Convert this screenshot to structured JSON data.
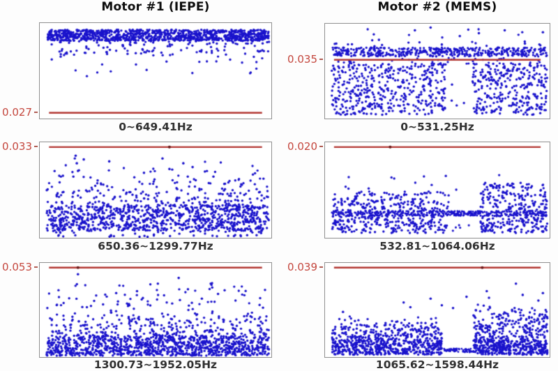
{
  "chart_data": {
    "type": "scatter",
    "layout": {
      "rows": 3,
      "cols": 2,
      "grid": false,
      "legend": "none"
    },
    "columns": [
      "Motor #1 (IEPE)",
      "Motor #2 (MEMS)"
    ],
    "colors": {
      "point": "#1a13cc",
      "threshold_line": "#b23530",
      "threshold_line_dot": "#6b1a1a",
      "threshold_label": "#c4463d",
      "frame": "#8f8f8f",
      "title": "#0d0d0d",
      "xlabel": "#303030"
    },
    "panels": [
      {
        "column": "Motor #1 (IEPE)",
        "band_index": 1,
        "threshold_value": "0.027",
        "x_range_label": "0~649.41Hz",
        "line_frac": 0.94,
        "line_dot_x": [],
        "clusters": [
          {
            "x0": 0.03,
            "x1": 0.99,
            "y0": 0.07,
            "y1": 0.185,
            "n": 950,
            "pow": 1,
            "r": 1.7
          },
          {
            "x0": 0.03,
            "x1": 0.99,
            "y0": 0.17,
            "y1": 0.33,
            "n": 130,
            "pow": 2.0,
            "r": 1.7
          },
          {
            "x0": 0.04,
            "x1": 0.98,
            "y0": 0.28,
            "y1": 0.56,
            "n": 45,
            "pow": 1.4,
            "r": 1.7
          }
        ],
        "points": []
      },
      {
        "column": "Motor #2 (MEMS)",
        "band_index": 1,
        "threshold_value": "0.035",
        "x_range_label": "0~531.25Hz",
        "line_frac": 0.38,
        "line_dot_x": [],
        "clusters": [
          {
            "x0": 0.03,
            "x1": 0.99,
            "y0": 0.25,
            "y1": 0.345,
            "n": 480,
            "pow": 1,
            "r": 1.6
          },
          {
            "x0": 0.04,
            "x1": 0.98,
            "y0": 0.05,
            "y1": 0.25,
            "n": 22,
            "pow": 0.55,
            "r": 1.7
          },
          {
            "x0": 0.03,
            "x1": 0.99,
            "y0": 0.36,
            "y1": 0.43,
            "n": 40,
            "pow": 1,
            "r": 1.6
          },
          {
            "x0": 0.03,
            "x1": 0.535,
            "y0": 0.42,
            "y1": 0.96,
            "n": 430,
            "pow": 1,
            "r": 1.7
          },
          {
            "x0": 0.657,
            "x1": 0.99,
            "y0": 0.42,
            "y1": 0.96,
            "n": 300,
            "pow": 1,
            "r": 1.7
          },
          {
            "x0": 0.535,
            "x1": 0.657,
            "y0": 0.5,
            "y1": 0.9,
            "n": 4,
            "pow": 1,
            "r": 1.7
          }
        ],
        "points": [
          [
            0.4,
            0.07
          ],
          [
            0.47,
            0.04
          ],
          [
            0.685,
            0.1
          ],
          [
            0.24,
            0.17
          ],
          [
            0.05,
            0.21
          ],
          [
            0.97,
            0.09
          ],
          [
            0.89,
            0.21
          ],
          [
            0.52,
            0.22
          ],
          [
            0.6,
            0.13
          ],
          [
            0.8,
            0.07
          ]
        ]
      },
      {
        "column": "Motor #1 (IEPE)",
        "band_index": 2,
        "threshold_value": "0.033",
        "x_range_label": "650.36~1299.77Hz",
        "line_frac": 0.05,
        "line_dot_x": [
          0.56
        ],
        "clusters": [
          {
            "x0": 0.03,
            "x1": 0.99,
            "y0": 0.66,
            "y1": 0.93,
            "n": 900,
            "pow": 0.9,
            "r": 1.7
          },
          {
            "x0": 0.03,
            "x1": 0.99,
            "y0": 0.15,
            "y1": 0.68,
            "n": 250,
            "pow": 0.45,
            "r": 1.7
          },
          {
            "x0": 0.05,
            "x1": 0.97,
            "y0": 0.93,
            "y1": 0.99,
            "n": 40,
            "pow": 1,
            "r": 1.7
          }
        ],
        "points": [
          [
            0.155,
            0.14
          ],
          [
            0.16,
            0.22
          ],
          [
            0.165,
            0.3
          ],
          [
            0.19,
            0.18
          ],
          [
            0.3,
            0.2
          ],
          [
            0.53,
            0.17
          ],
          [
            0.56,
            0.28
          ],
          [
            0.62,
            0.22
          ],
          [
            0.66,
            0.26
          ],
          [
            0.45,
            0.32
          ],
          [
            0.75,
            0.36
          ],
          [
            0.87,
            0.44
          ],
          [
            0.95,
            0.52
          ],
          [
            0.1,
            0.35
          ],
          [
            0.25,
            0.4
          ]
        ]
      },
      {
        "column": "Motor #2 (MEMS)",
        "band_index": 2,
        "threshold_value": "0.020",
        "x_range_label": "532.81~1064.06Hz",
        "line_frac": 0.05,
        "line_dot_x": [
          0.29
        ],
        "clusters": [
          {
            "x0": 0.03,
            "x1": 0.99,
            "y0": 0.72,
            "y1": 0.77,
            "n": 260,
            "pow": 1,
            "r": 1.5
          },
          {
            "x0": 0.03,
            "x1": 0.553,
            "y0": 0.5,
            "y1": 0.95,
            "n": 430,
            "pow": 0.85,
            "r": 1.7
          },
          {
            "x0": 0.69,
            "x1": 0.99,
            "y0": 0.42,
            "y1": 0.95,
            "n": 330,
            "pow": 0.85,
            "r": 1.7
          },
          {
            "x0": 0.553,
            "x1": 0.69,
            "y0": 0.72,
            "y1": 0.77,
            "n": 70,
            "pow": 1,
            "r": 1.4
          },
          {
            "x0": 0.05,
            "x1": 0.98,
            "y0": 0.32,
            "y1": 0.5,
            "n": 14,
            "pow": 0.6,
            "r": 1.7
          },
          {
            "x0": 0.553,
            "x1": 0.69,
            "y0": 0.85,
            "y1": 0.95,
            "n": 5,
            "pow": 1,
            "r": 1.6
          }
        ],
        "points": []
      },
      {
        "column": "Motor #1 (IEPE)",
        "band_index": 3,
        "threshold_value": "0.053",
        "x_range_label": "1300.73~1952.05Hz",
        "line_frac": 0.05,
        "line_dot_x": [
          0.165
        ],
        "clusters": [
          {
            "x0": 0.03,
            "x1": 0.99,
            "y0": 0.78,
            "y1": 0.985,
            "n": 950,
            "pow": 0.8,
            "r": 1.7
          },
          {
            "x0": 0.03,
            "x1": 0.99,
            "y0": 0.45,
            "y1": 0.8,
            "n": 330,
            "pow": 0.5,
            "r": 1.7
          },
          {
            "x0": 0.04,
            "x1": 0.98,
            "y0": 0.2,
            "y1": 0.47,
            "n": 70,
            "pow": 0.6,
            "r": 1.7
          }
        ],
        "points": [
          [
            0.165,
            0.12
          ],
          [
            0.51,
            0.22
          ],
          [
            0.6,
            0.16
          ],
          [
            0.42,
            0.3
          ],
          [
            0.64,
            0.28
          ],
          [
            0.33,
            0.32
          ],
          [
            0.77,
            0.33
          ],
          [
            0.7,
            0.38
          ]
        ]
      },
      {
        "column": "Motor #2 (MEMS)",
        "band_index": 3,
        "threshold_value": "0.039",
        "x_range_label": "1065.62~1598.44Hz",
        "line_frac": 0.05,
        "line_dot_x": [
          0.7
        ],
        "clusters": [
          {
            "x0": 0.03,
            "x1": 0.52,
            "y0": 0.82,
            "y1": 0.975,
            "n": 430,
            "pow": 0.9,
            "r": 1.7
          },
          {
            "x0": 0.66,
            "x1": 0.99,
            "y0": 0.82,
            "y1": 0.975,
            "n": 340,
            "pow": 0.9,
            "r": 1.7
          },
          {
            "x0": 0.52,
            "x1": 0.66,
            "y0": 0.91,
            "y1": 0.95,
            "n": 70,
            "pow": 1,
            "r": 1.4
          },
          {
            "x0": 0.03,
            "x1": 0.52,
            "y0": 0.56,
            "y1": 0.84,
            "n": 260,
            "pow": 0.55,
            "r": 1.7
          },
          {
            "x0": 0.66,
            "x1": 0.99,
            "y0": 0.42,
            "y1": 0.84,
            "n": 260,
            "pow": 0.5,
            "r": 1.7
          }
        ],
        "points": [
          [
            0.08,
            0.52
          ],
          [
            0.35,
            0.42
          ],
          [
            0.38,
            0.47
          ],
          [
            0.47,
            0.38
          ],
          [
            0.52,
            0.45
          ],
          [
            0.72,
            0.3
          ],
          [
            0.73,
            0.37
          ],
          [
            0.85,
            0.22
          ],
          [
            0.88,
            0.34
          ],
          [
            0.95,
            0.4
          ],
          [
            0.97,
            0.32
          ],
          [
            0.63,
            0.36
          ],
          [
            0.57,
            0.48
          ]
        ]
      }
    ]
  }
}
